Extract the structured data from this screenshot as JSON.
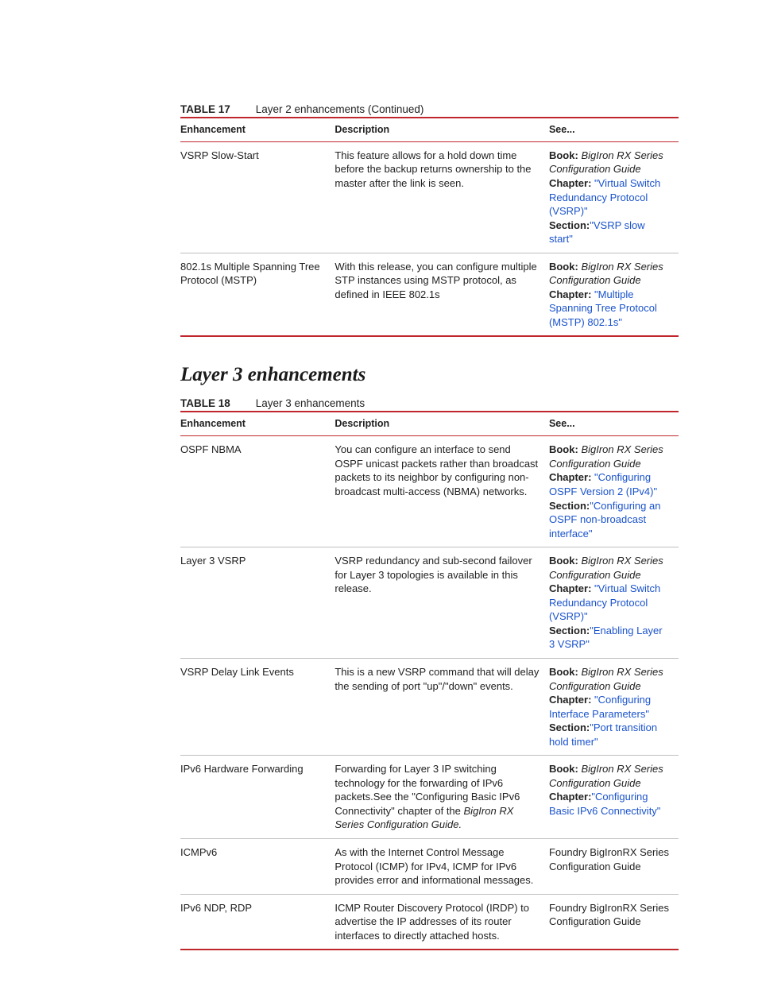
{
  "colors": {
    "rule": "#c0272d",
    "row_rule": "#bfbfbf",
    "link": "#1a53cc",
    "text": "#222222",
    "bg": "#ffffff"
  },
  "typography": {
    "body_family": "Arial",
    "body_size_pt": 10,
    "heading_family": "Georgia",
    "heading_size_pt": 20
  },
  "labels": {
    "book": "Book:",
    "chapter": "Chapter:",
    "section": "Section:"
  },
  "table17": {
    "label": "TABLE 17",
    "title": "Layer 2 enhancements (Continued)",
    "head": {
      "c1": "Enhancement",
      "c2": "Description",
      "c3": "See..."
    },
    "rows": [
      {
        "enh": "VSRP Slow-Start",
        "desc": "This feature allows for a hold down time before the backup returns ownership to the master after the link is seen.",
        "book": "BigIron RX Series Configuration Guide",
        "chapter": "\"Virtual Switch Redundancy Protocol (VSRP)\"",
        "section": "\"VSRP slow start\""
      },
      {
        "enh": "802.1s Multiple Spanning Tree Protocol (MSTP)",
        "desc": "With this release, you can configure multiple STP instances using MSTP protocol, as defined in IEEE 802.1s",
        "book": "BigIron RX Series Configuration Guide",
        "chapter": "\"Multiple Spanning Tree Protocol (MSTP) 802.1s\"",
        "section": ""
      }
    ]
  },
  "section_heading": "Layer 3 enhancements",
  "table18": {
    "label": "TABLE 18",
    "title": "Layer 3 enhancements",
    "head": {
      "c1": "Enhancement",
      "c2": "Description",
      "c3": "See..."
    },
    "rows": [
      {
        "enh": "OSPF NBMA",
        "desc": "You can configure an interface to send OSPF unicast packets rather than broadcast packets to its neighbor by configuring non-broadcast multi-access (NBMA) networks.",
        "book": "BigIron RX Series Configuration Guide",
        "chapter": "\"Configuring OSPF Version 2 (IPv4)\"",
        "section": "\"Configuring an OSPF non-broadcast interface\""
      },
      {
        "enh": "Layer 3 VSRP",
        "desc": "VSRP redundancy and sub-second failover for Layer 3 topologies is available in this release.",
        "book": "BigIron RX Series Configuration Guide",
        "chapter": "\"Virtual Switch Redundancy Protocol (VSRP)\"",
        "section": "\"Enabling Layer 3 VSRP\""
      },
      {
        "enh": "VSRP Delay Link Events",
        "desc": "This is a new VSRP command that will delay the sending of port \"up\"/\"down\" events.",
        "book": "BigIron RX Series Configuration Guide",
        "chapter": "\"Configuring Interface Parameters\"",
        "section": "\"Port transition hold timer\""
      },
      {
        "enh": "IPv6 Hardware Forwarding",
        "desc_pre": "Forwarding for Layer 3 IP switching technology for the forwarding of IPv6 packets.See the \"Configuring Basic IPv6 Connectivity\" chapter of the ",
        "desc_em": "BigIron RX Series Configuration Guide.",
        "book": "BigIron RX Series Configuration Guide",
        "chapter": "\"Configuring Basic IPv6 Connectivity\"",
        "section": ""
      },
      {
        "enh": "ICMPv6",
        "desc": "As with the Internet Control Message Protocol (ICMP) for IPv4, ICMP for IPv6 provides error and informational messages.",
        "plain_see": "Foundry BigIronRX Series Configuration Guide"
      },
      {
        "enh": "IPv6 NDP, RDP",
        "desc": "ICMP Router Discovery Protocol (IRDP) to advertise the IP addresses of its router interfaces to directly attached hosts.",
        "plain_see": "Foundry BigIronRX Series Configuration Guide"
      }
    ]
  }
}
